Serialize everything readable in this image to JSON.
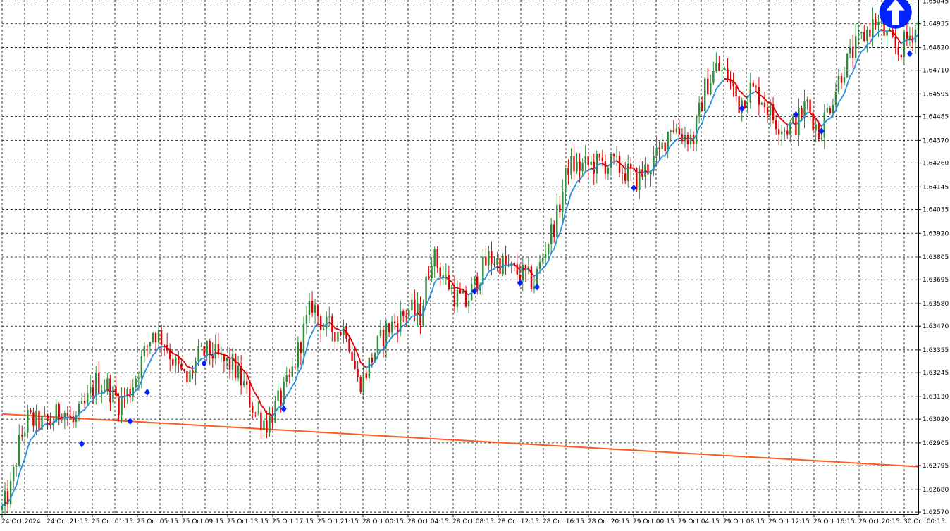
{
  "chart_data": {
    "type": "candlestick",
    "y_ticks": [
      1.6257,
      1.6268,
      1.62795,
      1.62905,
      1.6302,
      1.6313,
      1.63245,
      1.63355,
      1.6347,
      1.6358,
      1.63695,
      1.63805,
      1.6392,
      1.64035,
      1.64145,
      1.6426,
      1.6437,
      1.64485,
      1.64595,
      1.6471,
      1.6482,
      1.64935,
      1.65045
    ],
    "y_tick_labels": [
      "1.62570",
      "1.62680",
      "1.62795",
      "1.62905",
      "1.63020",
      "1.63130",
      "1.63245",
      "1.63355",
      "1.63470",
      "1.63580",
      "1.63695",
      "1.63805",
      "1.63920",
      "1.64035",
      "1.64145",
      "1.64260",
      "1.64370",
      "1.64485",
      "1.64595",
      "1.64710",
      "1.64820",
      "1.64935",
      "1.65045"
    ],
    "ylim": [
      1.6256,
      1.6505
    ],
    "x_labels": [
      "24 Oct 2024",
      "24 Oct 21:15",
      "25 Oct 01:15",
      "25 Oct 05:15",
      "25 Oct 09:15",
      "25 Oct 13:15",
      "25 Oct 17:15",
      "25 Oct 21:15",
      "28 Oct 00:15",
      "28 Oct 04:15",
      "28 Oct 08:15",
      "28 Oct 12:15",
      "28 Oct 16:15",
      "28 Oct 20:15",
      "29 Oct 00:15",
      "29 Oct 04:15",
      "29 Oct 08:15",
      "29 Oct 12:15",
      "29 Oct 16:15",
      "29 Oct 20:15",
      "30 Oct 00:15"
    ],
    "grid": true,
    "trend_anchors": [
      [
        0,
        1.6258
      ],
      [
        3,
        1.6268
      ],
      [
        6,
        1.629
      ],
      [
        9,
        1.6302
      ],
      [
        13,
        1.63
      ],
      [
        17,
        1.63
      ],
      [
        21,
        1.6308
      ],
      [
        25,
        1.63
      ],
      [
        29,
        1.6308
      ],
      [
        33,
        1.632
      ],
      [
        37,
        1.6318
      ],
      [
        41,
        1.631
      ],
      [
        45,
        1.6316
      ],
      [
        49,
        1.633
      ],
      [
        53,
        1.6345
      ],
      [
        57,
        1.634
      ],
      [
        61,
        1.6328
      ],
      [
        65,
        1.632
      ],
      [
        69,
        1.6332
      ],
      [
        73,
        1.6335
      ],
      [
        77,
        1.633
      ],
      [
        81,
        1.6328
      ],
      [
        85,
        1.6318
      ],
      [
        89,
        1.6305
      ],
      [
        93,
        1.63
      ],
      [
        97,
        1.631
      ],
      [
        101,
        1.632
      ],
      [
        105,
        1.634
      ],
      [
        109,
        1.6358
      ],
      [
        113,
        1.6347
      ],
      [
        117,
        1.6345
      ],
      [
        121,
        1.6346
      ],
      [
        125,
        1.632
      ],
      [
        127,
        1.6322
      ],
      [
        131,
        1.6335
      ],
      [
        135,
        1.6345
      ],
      [
        139,
        1.635
      ],
      [
        143,
        1.6355
      ],
      [
        147,
        1.6352
      ],
      [
        151,
        1.6382
      ],
      [
        155,
        1.6372
      ],
      [
        159,
        1.6362
      ],
      [
        163,
        1.6358
      ],
      [
        167,
        1.637
      ],
      [
        171,
        1.638
      ],
      [
        175,
        1.6378
      ],
      [
        179,
        1.6374
      ],
      [
        183,
        1.6372
      ],
      [
        187,
        1.6368
      ],
      [
        191,
        1.6385
      ],
      [
        195,
        1.64
      ],
      [
        199,
        1.6425
      ],
      [
        203,
        1.6424
      ],
      [
        207,
        1.6425
      ],
      [
        211,
        1.6426
      ],
      [
        215,
        1.6425
      ],
      [
        219,
        1.6422
      ],
      [
        223,
        1.6418
      ],
      [
        227,
        1.6424
      ],
      [
        231,
        1.643
      ],
      [
        235,
        1.6445
      ],
      [
        239,
        1.644
      ],
      [
        243,
        1.6438
      ],
      [
        247,
        1.6462
      ],
      [
        251,
        1.6472
      ],
      [
        255,
        1.6468
      ],
      [
        259,
        1.6455
      ],
      [
        263,
        1.6462
      ],
      [
        267,
        1.6458
      ],
      [
        271,
        1.6448
      ],
      [
        275,
        1.6443
      ],
      [
        279,
        1.6445
      ],
      [
        283,
        1.6455
      ],
      [
        287,
        1.644
      ],
      [
        291,
        1.6455
      ],
      [
        295,
        1.647
      ],
      [
        299,
        1.648
      ],
      [
        303,
        1.6488
      ],
      [
        307,
        1.6495
      ],
      [
        311,
        1.6487
      ],
      [
        315,
        1.648
      ],
      [
        319,
        1.6488
      ],
      [
        322,
        1.6493
      ]
    ],
    "ma_fast_color_up": "#2a8fe0",
    "ma_fast_color_down": "#dd0000",
    "ma_slow": {
      "color": "#ff5a1f",
      "start": 1.63045,
      "end": 1.6279
    },
    "candle_up_color": "#2e8b3a",
    "candle_down_color": "#dd0000",
    "diamond_color": "#0022ff",
    "markers": [
      {
        "x": 28,
        "y": 1.629
      },
      {
        "x": 45,
        "y": 1.6301
      },
      {
        "x": 51,
        "y": 1.6315
      },
      {
        "x": 71,
        "y": 1.6329
      },
      {
        "x": 99,
        "y": 1.6307
      },
      {
        "x": 166,
        "y": 1.6364
      },
      {
        "x": 182,
        "y": 1.6368
      },
      {
        "x": 188,
        "y": 1.6366
      },
      {
        "x": 222,
        "y": 1.6414
      },
      {
        "x": 260,
        "y": 1.64525
      },
      {
        "x": 279,
        "y": 1.64495
      },
      {
        "x": 288,
        "y": 1.64415
      },
      {
        "x": 319,
        "y": 1.6479
      }
    ],
    "arrow_signal": {
      "x": 314,
      "y": 1.6499,
      "direction": "up",
      "color": "#0022ff"
    }
  }
}
